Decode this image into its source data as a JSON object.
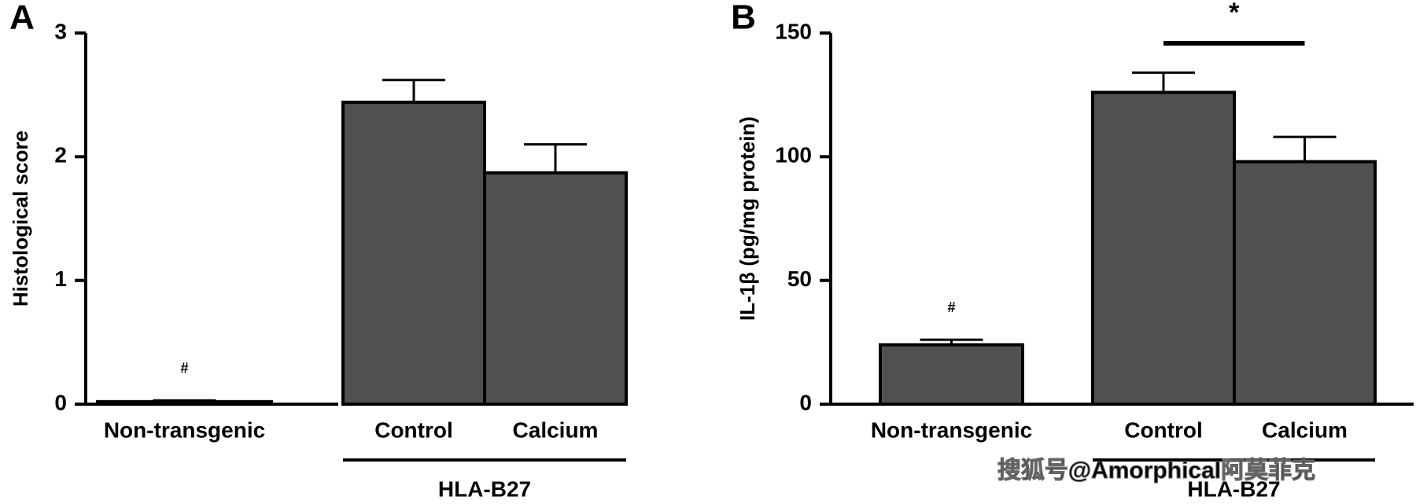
{
  "chart_data": [
    {
      "type": "bar",
      "panel": "A",
      "y_label": "Histological score",
      "categories": [
        "Non-transgenic",
        "Control",
        "Calcium"
      ],
      "values": [
        0.02,
        2.44,
        1.87
      ],
      "errors": [
        0.01,
        0.18,
        0.23
      ],
      "color": "#505050",
      "ylim": [
        0,
        3
      ],
      "yticks": [
        0,
        1,
        2,
        3
      ],
      "annotation": "#",
      "group_label": "HLA-B27"
    },
    {
      "type": "bar",
      "panel": "B",
      "y_label": "IL-1β (pg/mg protein)",
      "categories": [
        "Non-transgenic",
        "Control",
        "Calcium"
      ],
      "values": [
        24,
        126,
        98
      ],
      "errors": [
        2,
        8,
        10
      ],
      "color": "#505050",
      "ylim": [
        0,
        150
      ],
      "yticks": [
        0,
        50,
        100,
        150
      ],
      "annotation": "#",
      "significance": "*",
      "group_label": "HLA-B27"
    }
  ],
  "watermark": "搜狐号@Amorphical阿莫菲克"
}
